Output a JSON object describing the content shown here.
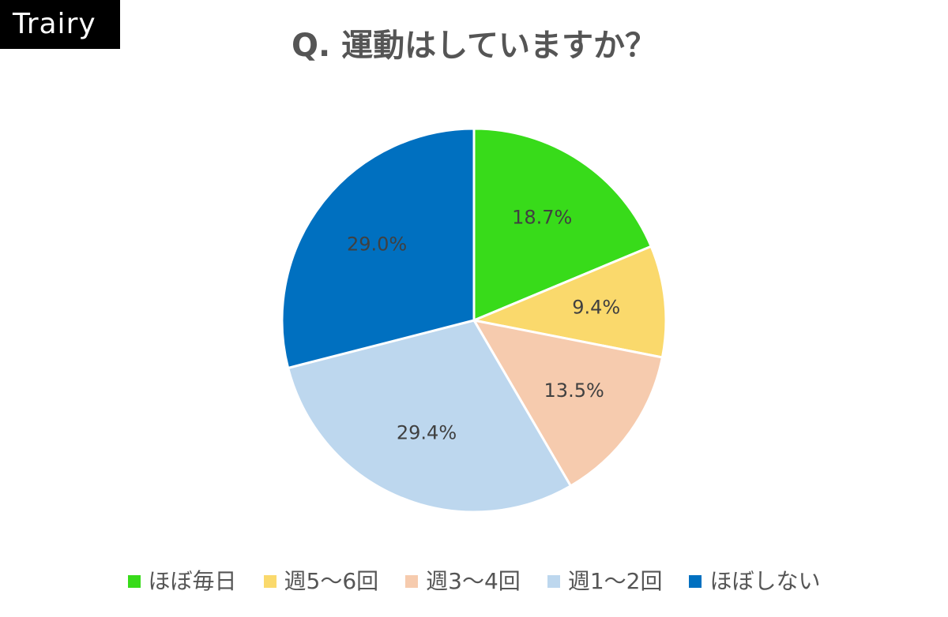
{
  "brand": {
    "name": "Trairy"
  },
  "colors": {
    "background": "#ffffff",
    "brand_bg": "#000000",
    "brand_text": "#ffffff",
    "title_text": "#555555",
    "label_text": "#404040"
  },
  "chart_data": {
    "type": "pie",
    "title": "Q. 運動はしていますか？",
    "categories": [
      "ほぼ毎日",
      "週5～6回",
      "週3～4回",
      "週1～2回",
      "ほぼしない"
    ],
    "values": [
      18.7,
      9.4,
      13.5,
      29.4,
      29.0
    ],
    "labels": [
      "18.7%",
      "9.4%",
      "13.5%",
      "29.4%",
      "29.0%"
    ],
    "colors": [
      "#38DB1A",
      "#FAD96C",
      "#F6CBAE",
      "#BDD7EE",
      "#0070C0"
    ],
    "start": "12 o'clock",
    "direction": "clockwise",
    "legend_position": "bottom"
  }
}
